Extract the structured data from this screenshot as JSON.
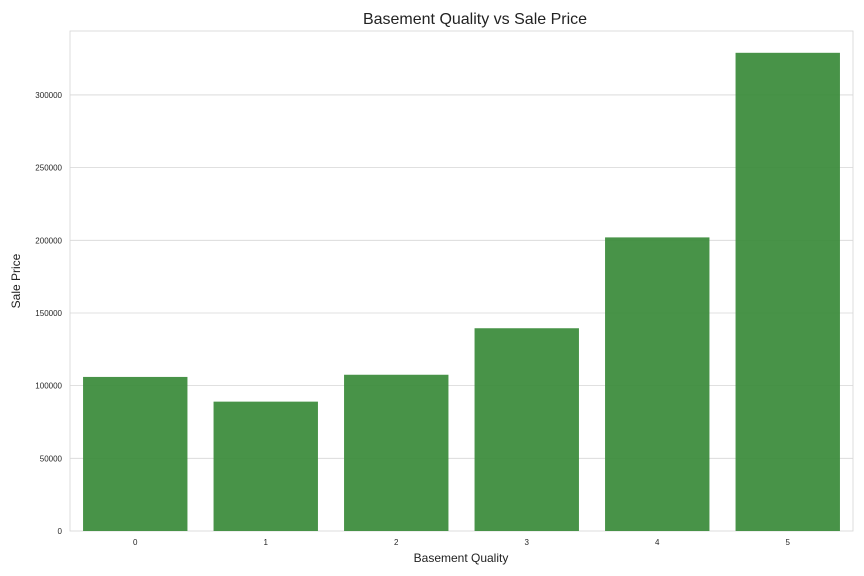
{
  "chart_data": {
    "type": "bar",
    "title": "Basement Quality vs Sale Price",
    "xlabel": "Basement Quality",
    "ylabel": "Sale Price",
    "categories": [
      "0",
      "1",
      "2",
      "3",
      "4",
      "5"
    ],
    "values": [
      106000,
      89000,
      107500,
      139500,
      202000,
      329000
    ],
    "ylim": [
      0,
      344000
    ],
    "yticks": [
      0,
      50000,
      100000,
      150000,
      200000,
      250000,
      300000
    ],
    "ytick_labels": [
      "0",
      "50000",
      "100000",
      "150000",
      "200000",
      "250000",
      "300000"
    ],
    "grid": "horizontal",
    "bar_color": "#3a8b3a"
  }
}
